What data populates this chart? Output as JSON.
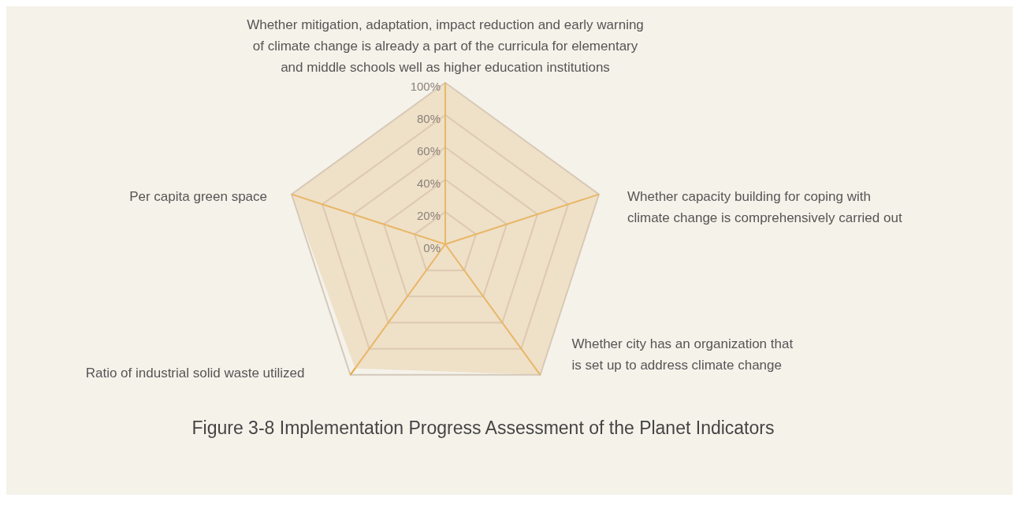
{
  "chart_data": {
    "type": "radar",
    "title": "Figure 3-8 Implementation Progress Assessment of the Planet Indicators",
    "categories": [
      "Whether mitigation, adaptation, impact reduction and early warning of climate change is already a part of the curricula for elementary and middle schools well as higher education institutions",
      "Whether capacity building for coping with climate change is comprehensively carried out",
      "Whether city has an organization that is set up to address climate change",
      "Ratio of industrial solid waste utilized",
      "Per capita green space"
    ],
    "series": [
      {
        "color": "#e9c9a0",
        "values": [
          100,
          100,
          100,
          95,
          100
        ]
      }
    ],
    "ylim": [
      0,
      100
    ],
    "yticks": [
      {
        "value": 0,
        "label": "0%"
      },
      {
        "value": 20,
        "label": "20%"
      },
      {
        "value": 40,
        "label": "40%"
      },
      {
        "value": 60,
        "label": "60%"
      },
      {
        "value": 80,
        "label": "80%"
      },
      {
        "value": 100,
        "label": "100%"
      }
    ],
    "grid": true
  }
}
